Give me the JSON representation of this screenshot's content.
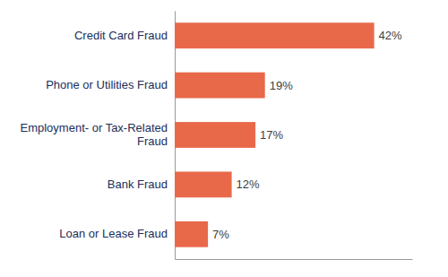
{
  "chart_data": {
    "type": "bar",
    "orientation": "horizontal",
    "categories": [
      "Loan or Lease Fraud",
      "Bank Fraud",
      "Employment- or Tax-Related\nFraud",
      "Phone or Utilities Fraud",
      "Credit Card Fraud"
    ],
    "values": [
      7,
      12,
      17,
      19,
      42
    ],
    "value_labels": [
      "7%",
      "12%",
      "17%",
      "19%",
      "42%"
    ],
    "data_labels": true,
    "color": "#E8694A",
    "xlim": [
      0,
      50
    ],
    "tick_labels": "y",
    "grid": false
  }
}
